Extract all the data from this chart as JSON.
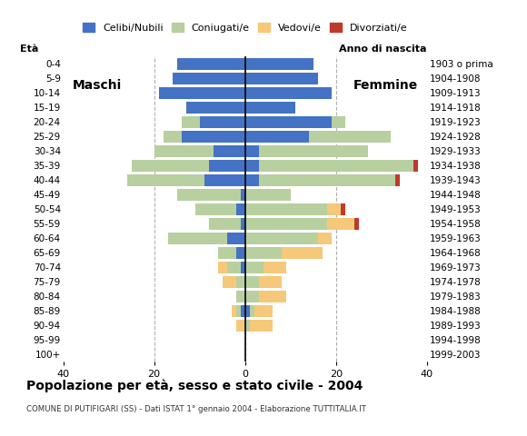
{
  "age_groups": [
    "0-4",
    "5-9",
    "10-14",
    "15-19",
    "20-24",
    "25-29",
    "30-34",
    "35-39",
    "40-44",
    "45-49",
    "50-54",
    "55-59",
    "60-64",
    "65-69",
    "70-74",
    "75-79",
    "80-84",
    "85-89",
    "90-94",
    "95-99",
    "100+"
  ],
  "birth_years": [
    "1999-2003",
    "1994-1998",
    "1989-1993",
    "1984-1988",
    "1979-1983",
    "1974-1978",
    "1969-1973",
    "1964-1968",
    "1959-1963",
    "1954-1958",
    "1949-1953",
    "1944-1948",
    "1939-1943",
    "1934-1938",
    "1929-1933",
    "1924-1928",
    "1919-1923",
    "1914-1918",
    "1909-1913",
    "1904-1908",
    "1903 o prima"
  ],
  "colors": {
    "celibi": "#4472c4",
    "coniugati": "#b8cfa0",
    "vedovi": "#f5c87a",
    "divorziati": "#c0392b"
  },
  "males": {
    "celibi": [
      15,
      16,
      19,
      13,
      10,
      14,
      7,
      8,
      9,
      1,
      2,
      1,
      4,
      2,
      1,
      0,
      0,
      1,
      0,
      0,
      0
    ],
    "coniugati": [
      0,
      0,
      0,
      0,
      4,
      4,
      13,
      17,
      17,
      14,
      9,
      7,
      13,
      4,
      3,
      2,
      2,
      1,
      0,
      0,
      0
    ],
    "vedovi": [
      0,
      0,
      0,
      0,
      0,
      0,
      0,
      0,
      0,
      0,
      0,
      0,
      0,
      0,
      2,
      3,
      0,
      1,
      2,
      0,
      0
    ],
    "divorziati": [
      0,
      0,
      0,
      0,
      0,
      0,
      0,
      0,
      0,
      0,
      0,
      0,
      0,
      0,
      0,
      0,
      0,
      0,
      0,
      0,
      0
    ]
  },
  "females": {
    "celibi": [
      15,
      16,
      19,
      11,
      19,
      14,
      3,
      3,
      3,
      0,
      0,
      0,
      0,
      0,
      0,
      0,
      0,
      1,
      0,
      0,
      0
    ],
    "coniugati": [
      0,
      0,
      0,
      0,
      3,
      18,
      24,
      34,
      30,
      10,
      18,
      18,
      16,
      8,
      4,
      3,
      3,
      1,
      1,
      0,
      0
    ],
    "vedovi": [
      0,
      0,
      0,
      0,
      0,
      0,
      0,
      0,
      0,
      0,
      3,
      6,
      3,
      9,
      5,
      5,
      6,
      4,
      5,
      0,
      0
    ],
    "divorziati": [
      0,
      0,
      0,
      0,
      0,
      0,
      0,
      1,
      1,
      0,
      1,
      1,
      0,
      0,
      0,
      0,
      0,
      0,
      0,
      0,
      0
    ]
  },
  "title": "Popolazione per età, sesso e stato civile - 2004",
  "subtitle": "COMUNE DI PUTIFIGARI (SS) - Dati ISTAT 1° gennaio 2004 - Elaborazione TUTTITALIA.IT",
  "label_eta": "Età",
  "label_anno": "Anno di nascita",
  "label_maschi": "Maschi",
  "label_femmine": "Femmine",
  "legend_labels": [
    "Celibi/Nubili",
    "Coniugati/e",
    "Vedovi/e",
    "Divorziati/e"
  ],
  "xlim": 40,
  "background_color": "#ffffff",
  "grid_color": "#b0b0b0"
}
